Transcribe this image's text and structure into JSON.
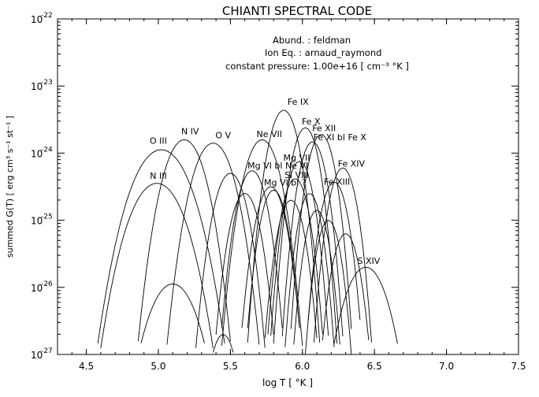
{
  "chart_data": {
    "type": "line",
    "title": "CHIANTI SPECTRAL CODE",
    "xlabel": "log T [ °K ]",
    "ylabel": "summed G(T) [ erg cm³ s⁻¹ st⁻¹ ]",
    "xlim": [
      4.3,
      7.5
    ],
    "ylim_log10": [
      -27,
      -22
    ],
    "y_scale": "log",
    "grid": false,
    "x_ticks": [
      {
        "value": 4.5,
        "label": "4.5"
      },
      {
        "value": 5.0,
        "label": "5.0"
      },
      {
        "value": 5.5,
        "label": "5.5"
      },
      {
        "value": 6.0,
        "label": "6.0"
      },
      {
        "value": 6.5,
        "label": "6.5"
      },
      {
        "value": 7.0,
        "label": "7.0"
      },
      {
        "value": 7.5,
        "label": "7.5"
      }
    ],
    "y_ticks": [
      {
        "exp": -27,
        "base": "10",
        "sup": "-27"
      },
      {
        "exp": -26,
        "base": "10",
        "sup": "-26"
      },
      {
        "exp": -25,
        "base": "10",
        "sup": "-25"
      },
      {
        "exp": -24,
        "base": "10",
        "sup": "-24"
      },
      {
        "exp": -23,
        "base": "10",
        "sup": "-23"
      },
      {
        "exp": -22,
        "base": "10",
        "sup": "-22"
      }
    ],
    "annotations": [
      "Abund.  :  feldman",
      "Ion Eq.  :  arnaud_raymond",
      "constant pressure: 1.00e+16 [ cm⁻³ °K ]"
    ],
    "series": [
      {
        "name": "O  III",
        "peak_x": 5.02,
        "peak_y": -23.95,
        "width": 0.21,
        "label_x": 5.0,
        "label_y": -23.86
      },
      {
        "name": "N  III",
        "peak_x": 4.99,
        "peak_y": -24.45,
        "width": 0.2,
        "label_x": 5.0,
        "label_y": -24.38
      },
      {
        "name": "N  IV",
        "peak_x": 5.18,
        "peak_y": -23.8,
        "width": 0.15,
        "label_x": 5.22,
        "label_y": -23.72
      },
      {
        "name": "O  V",
        "peak_x": 5.38,
        "peak_y": -23.85,
        "width": 0.15,
        "label_x": 5.45,
        "label_y": -23.78
      },
      {
        "name": "Ne VII",
        "peak_x": 5.72,
        "peak_y": -23.8,
        "width": 0.13,
        "label_x": 5.77,
        "label_y": -23.76
      },
      {
        "name": "Mg VI bl Ne VI",
        "peak_x": 5.65,
        "peak_y": -24.26,
        "width": 0.11,
        "label_x": 5.83,
        "label_y": -24.23
      },
      {
        "name": "Fe IX",
        "peak_x": 5.87,
        "peak_y": -23.36,
        "width": 0.11,
        "label_x": 5.97,
        "label_y": -23.28
      },
      {
        "name": "Fe X",
        "peak_x": 6.02,
        "peak_y": -23.62,
        "width": 0.1,
        "label_x": 6.06,
        "label_y": -23.57
      },
      {
        "name": "Fe XII",
        "peak_x": 6.13,
        "peak_y": -23.72,
        "width": 0.1,
        "label_x": 6.15,
        "label_y": -23.67
      },
      {
        "name": "Fe XI bl Fe X",
        "peak_x": 6.07,
        "peak_y": -23.83,
        "width": 0.1,
        "label_x": 6.26,
        "label_y": -23.81
      },
      {
        "name": "Mg VII",
        "peak_x": 5.98,
        "peak_y": -24.12,
        "width": 0.1,
        "label_x": 5.96,
        "label_y": -24.11
      },
      {
        "name": "Si VIII",
        "peak_x": 5.95,
        "peak_y": -24.38,
        "width": 0.1,
        "label_x": 5.96,
        "label_y": -24.37
      },
      {
        "name": "Mg VI bl ?",
        "peak_x": 5.78,
        "peak_y": -24.5,
        "width": 0.11,
        "label_x": 5.88,
        "label_y": -24.48
      },
      {
        "name": "Fe XIII",
        "peak_x": 6.22,
        "peak_y": -24.43,
        "width": 0.1,
        "label_x": 6.24,
        "label_y": -24.47
      },
      {
        "name": "Fe XIV",
        "peak_x": 6.28,
        "peak_y": -24.22,
        "width": 0.1,
        "label_x": 6.34,
        "label_y": -24.2
      },
      {
        "name": "S  XIV",
        "peak_x": 6.44,
        "peak_y": -25.7,
        "width": 0.16,
        "label_x": 6.46,
        "label_y": -25.65
      },
      {
        "name": "",
        "peak_x": 5.1,
        "peak_y": -25.95,
        "width": 0.18,
        "label_x": null,
        "label_y": null
      },
      {
        "name": "",
        "peak_x": 5.5,
        "peak_y": -24.3,
        "width": 0.12,
        "label_x": null,
        "label_y": null
      },
      {
        "name": "",
        "peak_x": 5.6,
        "peak_y": -24.6,
        "width": 0.11,
        "label_x": null,
        "label_y": null
      },
      {
        "name": "",
        "peak_x": 5.8,
        "peak_y": -24.55,
        "width": 0.1,
        "label_x": null,
        "label_y": null
      },
      {
        "name": "",
        "peak_x": 5.92,
        "peak_y": -24.7,
        "width": 0.1,
        "label_x": null,
        "label_y": null
      },
      {
        "name": "",
        "peak_x": 6.05,
        "peak_y": -24.6,
        "width": 0.09,
        "label_x": null,
        "label_y": null
      },
      {
        "name": "",
        "peak_x": 6.1,
        "peak_y": -24.85,
        "width": 0.09,
        "label_x": null,
        "label_y": null
      },
      {
        "name": "",
        "peak_x": 6.18,
        "peak_y": -25.0,
        "width": 0.09,
        "label_x": null,
        "label_y": null
      },
      {
        "name": "",
        "peak_x": 5.45,
        "peak_y": -26.7,
        "width": 0.1,
        "label_x": null,
        "label_y": null
      },
      {
        "name": "",
        "peak_x": 6.3,
        "peak_y": -25.2,
        "width": 0.1,
        "label_x": null,
        "label_y": null
      }
    ]
  }
}
